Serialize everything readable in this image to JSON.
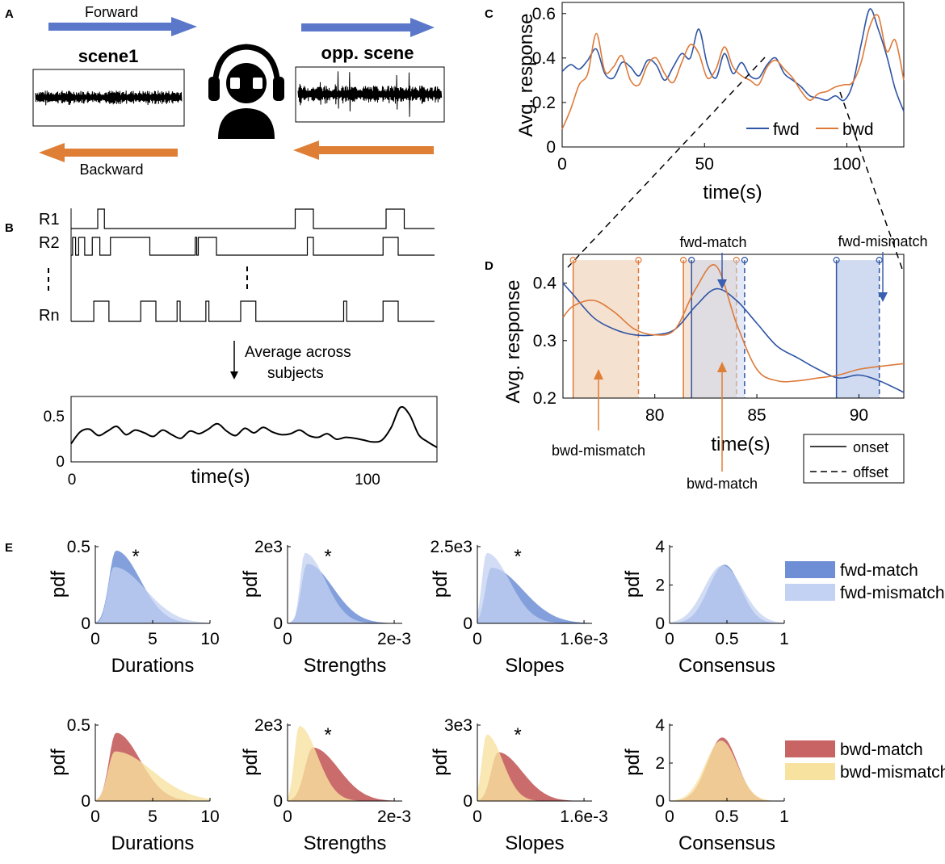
{
  "colors": {
    "fwd": "#2f55a4",
    "bwd": "#dd7a3a",
    "fwd_fill": "#c8d3ee",
    "bwd_fill": "#f3dcc8",
    "fwd_match": "#6e8fd6",
    "fwd_mismatch": "#c3d1f2",
    "bwd_match": "#c86464",
    "bwd_mismatch": "#f8e2a0",
    "arrow_blue": "#5b77c9",
    "arrow_orange": "#df7f36"
  },
  "icons": {
    "listener": "listener-headphones-icon"
  },
  "panel_labels": {
    "a": "A",
    "b": "B",
    "c": "C",
    "d": "D",
    "e": "E"
  },
  "panel_a": {
    "forward_label": "Forward",
    "backward_label": "Backward",
    "scene1_label": "scene1",
    "opp_scene_label": "opp. scene"
  },
  "panel_b": {
    "rows": [
      "R1",
      "R2",
      "Rn"
    ],
    "ellipsis": "...",
    "average_text_line1": "Average across",
    "average_text_line2": "subjects",
    "xlabel": "time(s)",
    "xticks": [
      "0",
      "100"
    ],
    "yticks": [
      "0",
      "0.5"
    ]
  },
  "chart_data": [
    {
      "id": "panel-c",
      "type": "line",
      "title": "",
      "xlabel": "time(s)",
      "ylabel": "Avg. response",
      "xlim": [
        0,
        120
      ],
      "ylim": [
        0,
        0.65
      ],
      "xticks": [
        "0",
        "50",
        "100"
      ],
      "yticks": [
        "0",
        "0.2",
        "0.4",
        "0.6"
      ],
      "legend": [
        "fwd",
        "bwd"
      ],
      "series": [
        {
          "name": "fwd",
          "x": [
            0,
            3,
            6,
            9,
            12,
            15,
            18,
            21,
            24,
            27,
            30,
            33,
            36,
            39,
            42,
            45,
            48,
            51,
            54,
            57,
            60,
            63,
            66,
            69,
            72,
            75,
            78,
            81,
            84,
            87,
            90,
            93,
            96,
            99,
            102,
            105,
            108,
            111,
            114,
            117,
            120
          ],
          "y": [
            0.34,
            0.37,
            0.35,
            0.39,
            0.44,
            0.33,
            0.31,
            0.38,
            0.36,
            0.32,
            0.39,
            0.37,
            0.3,
            0.36,
            0.42,
            0.4,
            0.53,
            0.37,
            0.31,
            0.42,
            0.33,
            0.38,
            0.32,
            0.31,
            0.37,
            0.4,
            0.33,
            0.3,
            0.27,
            0.23,
            0.22,
            0.21,
            0.23,
            0.21,
            0.28,
            0.46,
            0.62,
            0.53,
            0.41,
            0.26,
            0.16
          ]
        },
        {
          "name": "bwd",
          "x": [
            0,
            3,
            6,
            9,
            12,
            15,
            18,
            21,
            24,
            27,
            30,
            33,
            36,
            39,
            42,
            45,
            48,
            51,
            54,
            57,
            60,
            63,
            66,
            69,
            72,
            75,
            78,
            81,
            84,
            87,
            90,
            93,
            96,
            99,
            102,
            105,
            108,
            111,
            114,
            117,
            120
          ],
          "y": [
            0.08,
            0.17,
            0.28,
            0.33,
            0.51,
            0.34,
            0.36,
            0.41,
            0.3,
            0.28,
            0.37,
            0.4,
            0.33,
            0.29,
            0.38,
            0.46,
            0.42,
            0.31,
            0.35,
            0.45,
            0.36,
            0.32,
            0.3,
            0.28,
            0.36,
            0.39,
            0.35,
            0.31,
            0.25,
            0.21,
            0.24,
            0.25,
            0.27,
            0.28,
            0.29,
            0.38,
            0.54,
            0.59,
            0.43,
            0.48,
            0.3
          ]
        }
      ]
    },
    {
      "id": "panel-d",
      "type": "line",
      "title": "",
      "xlabel": "time(s)",
      "ylabel": "Avg. response",
      "xlim": [
        75.5,
        92.2
      ],
      "ylim": [
        0.2,
        0.45
      ],
      "xticks": [
        "80",
        "85",
        "90"
      ],
      "yticks": [
        "0.2",
        "0.3",
        "0.4"
      ],
      "legend": [
        "onset",
        "offset"
      ],
      "series": [
        {
          "name": "fwd",
          "x": [
            75.5,
            76,
            77,
            78,
            79,
            80,
            81,
            82,
            83,
            84,
            85,
            86,
            87,
            88,
            89,
            90,
            91,
            92.2
          ],
          "y": [
            0.4,
            0.38,
            0.34,
            0.32,
            0.31,
            0.31,
            0.32,
            0.36,
            0.39,
            0.37,
            0.33,
            0.29,
            0.27,
            0.25,
            0.235,
            0.24,
            0.23,
            0.21
          ]
        },
        {
          "name": "bwd",
          "x": [
            75.5,
            76,
            77,
            78,
            79,
            80,
            81,
            82,
            83,
            84,
            85,
            86,
            87,
            88,
            89,
            90,
            91,
            92.2
          ],
          "y": [
            0.34,
            0.36,
            0.37,
            0.35,
            0.32,
            0.31,
            0.32,
            0.39,
            0.43,
            0.33,
            0.25,
            0.23,
            0.23,
            0.235,
            0.24,
            0.25,
            0.255,
            0.26
          ]
        }
      ],
      "regions": [
        {
          "name": "bwd-mismatch",
          "x0": 76,
          "x1": 79.2
        },
        {
          "name": "bwd-match",
          "x0": 81.4,
          "x1": 84.0
        },
        {
          "name": "fwd-match",
          "x0": 81.8,
          "x1": 84.4
        },
        {
          "name": "fwd-mismatch",
          "x0": 88.9,
          "x1": 91.0
        }
      ],
      "annotations": [
        "fwd-match",
        "fwd-mismatch",
        "bwd-mismatch",
        "bwd-match"
      ]
    },
    {
      "id": "panel-e",
      "type": "area",
      "ylabel": "pdf",
      "stars": [
        "*"
      ],
      "legends": [
        [
          "fwd-match",
          "fwd-mismatch"
        ],
        [
          "bwd-match",
          "bwd-mismatch"
        ]
      ],
      "subplots": [
        {
          "xlabel": "Durations",
          "xticks": [
            "0",
            "5",
            "10"
          ],
          "yticks": [
            "0",
            "0.5"
          ],
          "star": true
        },
        {
          "xlabel": "Strengths",
          "xticks": [
            "0",
            "2e-3"
          ],
          "yticks": [
            "0",
            "2e3"
          ],
          "star": true
        },
        {
          "xlabel": "Slopes",
          "xticks": [
            "0",
            "1.6e-3"
          ],
          "yticks": [
            "0",
            "2.5e3"
          ],
          "star": true
        },
        {
          "xlabel": "Consensus",
          "xticks": [
            "0",
            "0.5",
            "1"
          ],
          "yticks": [
            "0",
            "2",
            "4"
          ],
          "star": false
        },
        {
          "xlabel": "Durations",
          "xticks": [
            "0",
            "5",
            "10"
          ],
          "yticks": [
            "0",
            "0.5"
          ],
          "star": false
        },
        {
          "xlabel": "Strengths",
          "xticks": [
            "0",
            "2e-3"
          ],
          "yticks": [
            "0",
            "2e3"
          ],
          "star": true
        },
        {
          "xlabel": "Slopes",
          "xticks": [
            "0",
            "1.6e-3"
          ],
          "yticks": [
            "0",
            "3e3"
          ],
          "star": true
        },
        {
          "xlabel": "Consensus",
          "xticks": [
            "0",
            "0.5",
            "1"
          ],
          "yticks": [
            "0",
            "2",
            "4"
          ],
          "star": false
        }
      ]
    }
  ]
}
